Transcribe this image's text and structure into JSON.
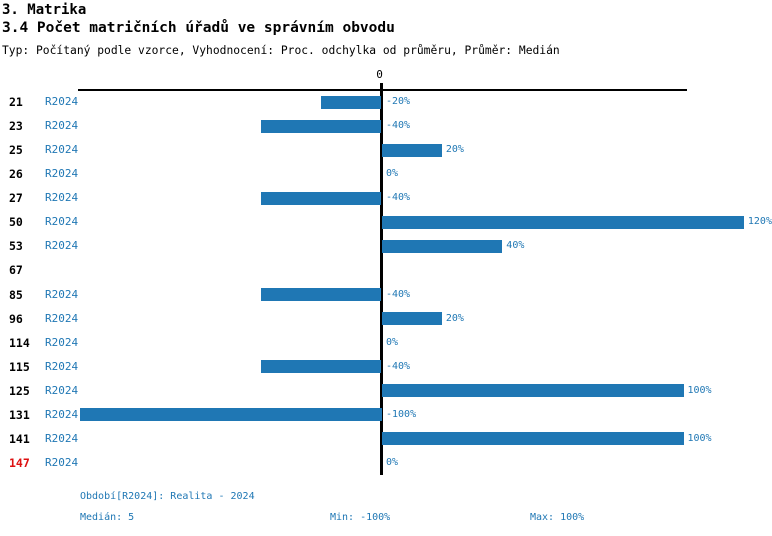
{
  "header": {
    "title_line1": "3. Matrika",
    "title_line2": "3.4 Počet matričních úřadů ve správním obvodu",
    "subtitle": "Typ: Počítaný podle vzorce, Vyhodnocení: Proc. odchylka od průměru, Průměr: Medián"
  },
  "colors": {
    "bar_blue": "#1f77b4",
    "text_blue": "#1f77b4",
    "alert_red": "#dd1111",
    "axis_black": "#000000"
  },
  "chart_data": {
    "type": "bar",
    "orientation": "horizontal",
    "value_unit": "%",
    "zero_tick_label": "0",
    "xlim": [
      -100,
      101.5
    ],
    "grid": false,
    "rows": [
      {
        "id": "21",
        "period": "R2024",
        "value": -20,
        "label": "-20%",
        "alert": false
      },
      {
        "id": "23",
        "period": "R2024",
        "value": -40,
        "label": "-40%",
        "alert": false
      },
      {
        "id": "25",
        "period": "R2024",
        "value": 20,
        "label": "20%",
        "alert": false
      },
      {
        "id": "26",
        "period": "R2024",
        "value": 0,
        "label": "0%",
        "alert": false
      },
      {
        "id": "27",
        "period": "R2024",
        "value": -40,
        "label": "-40%",
        "alert": false
      },
      {
        "id": "50",
        "period": "R2024",
        "value": 120,
        "label": "120%",
        "alert": false
      },
      {
        "id": "53",
        "period": "R2024",
        "value": 40,
        "label": "40%",
        "alert": false
      },
      {
        "id": "67",
        "period": "",
        "value": null,
        "label": "",
        "alert": false
      },
      {
        "id": "85",
        "period": "R2024",
        "value": -40,
        "label": "-40%",
        "alert": false
      },
      {
        "id": "96",
        "period": "R2024",
        "value": 20,
        "label": "20%",
        "alert": false
      },
      {
        "id": "114",
        "period": "R2024",
        "value": 0,
        "label": "0%",
        "alert": false
      },
      {
        "id": "115",
        "period": "R2024",
        "value": -40,
        "label": "-40%",
        "alert": false
      },
      {
        "id": "125",
        "period": "R2024",
        "value": 100,
        "label": "100%",
        "alert": false
      },
      {
        "id": "131",
        "period": "R2024",
        "value": -100,
        "label": "-100%",
        "alert": false
      },
      {
        "id": "141",
        "period": "R2024",
        "value": 100,
        "label": "100%",
        "alert": false
      },
      {
        "id": "147",
        "period": "R2024",
        "value": 0,
        "label": "0%",
        "alert": true
      }
    ]
  },
  "footer": {
    "period_line": "Období[R2024]: Realita - 2024",
    "median": "Medián: 5",
    "min": "Min: -100%",
    "max": "Max: 100%"
  }
}
